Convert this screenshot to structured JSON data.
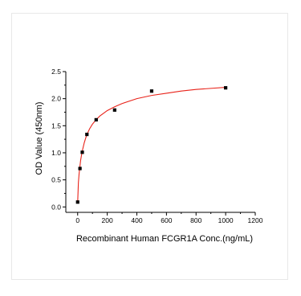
{
  "chart_data": {
    "type": "scatter",
    "title": "",
    "xlabel": "Recombinant Human FCGR1A Conc.(ng/mL)",
    "ylabel": "OD Value (450nm)",
    "xlim": [
      -80,
      1200
    ],
    "ylim": [
      -0.1,
      2.5
    ],
    "x_ticks": [
      0,
      200,
      400,
      600,
      800,
      1000,
      1200
    ],
    "y_ticks": [
      0.0,
      0.5,
      1.0,
      1.5,
      2.0,
      2.5
    ],
    "y_tick_labels": [
      "0.0",
      "0.5",
      "1.0",
      "1.5",
      "2.0",
      "2.5"
    ],
    "grid": false,
    "legend": "none",
    "series": [
      {
        "marker": "square",
        "color": "#000000",
        "x": [
          0,
          15.6,
          31.25,
          62.5,
          125,
          250,
          500,
          1000
        ],
        "y": [
          0.09,
          0.71,
          1.01,
          1.34,
          1.61,
          1.79,
          2.14,
          2.2
        ]
      }
    ],
    "fit_curve": {
      "color": "#e8231a",
      "samples": [
        [
          0,
          0.08
        ],
        [
          5,
          0.45
        ],
        [
          10,
          0.62
        ],
        [
          20,
          0.86
        ],
        [
          30,
          1.02
        ],
        [
          45,
          1.19
        ],
        [
          60,
          1.32
        ],
        [
          80,
          1.44
        ],
        [
          100,
          1.53
        ],
        [
          125,
          1.61
        ],
        [
          150,
          1.68
        ],
        [
          200,
          1.78
        ],
        [
          250,
          1.85
        ],
        [
          300,
          1.91
        ],
        [
          400,
          2.0
        ],
        [
          500,
          2.06
        ],
        [
          600,
          2.1
        ],
        [
          700,
          2.14
        ],
        [
          800,
          2.17
        ],
        [
          900,
          2.19
        ],
        [
          1000,
          2.21
        ]
      ]
    }
  }
}
